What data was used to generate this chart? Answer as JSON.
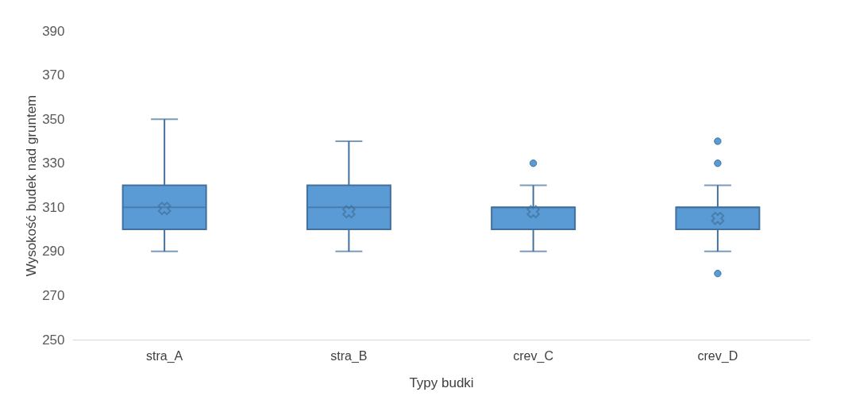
{
  "chart_data": {
    "type": "box",
    "xlabel": "Typy budki",
    "ylabel": "Wysokość budek nad gruntem",
    "categories": [
      "stra_A",
      "stra_B",
      "crev_C",
      "crev_D"
    ],
    "boxes": [
      {
        "low": 290,
        "q1": 300,
        "median": 310,
        "q3": 320,
        "high": 350,
        "mean": 309.5
      },
      {
        "low": 290,
        "q1": 300,
        "median": 310,
        "q3": 320,
        "high": 340,
        "mean": 308
      },
      {
        "low": 290,
        "q1": 300,
        "median": 310,
        "q3": 310,
        "high": 320,
        "mean": 308,
        "outliers": [
          330
        ]
      },
      {
        "low": 290,
        "q1": 300,
        "median": 310,
        "q3": 310,
        "high": 320,
        "mean": 305,
        "outliers": [
          340,
          330,
          280
        ]
      }
    ],
    "color": "#5b9bd5",
    "ylim": [
      250,
      390
    ],
    "yticks": [
      250,
      270,
      290,
      310,
      330,
      350,
      370,
      390
    ],
    "grid": false
  }
}
